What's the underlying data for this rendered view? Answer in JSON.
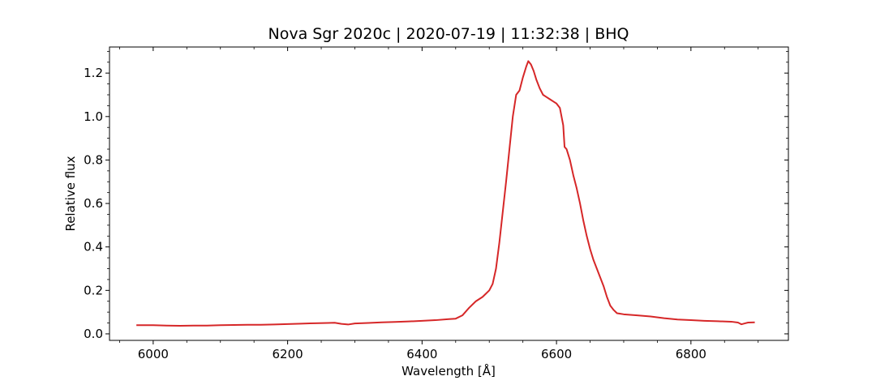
{
  "chart_data": {
    "type": "line",
    "title": "Nova Sgr 2020c | 2020-07-19 | 11:32:38 | BHQ",
    "xlabel": "Wavelength [Å]",
    "ylabel": "Relative flux",
    "xlim": [
      5935,
      6945
    ],
    "ylim": [
      -0.03,
      1.32
    ],
    "x_ticks": [
      6000,
      6200,
      6400,
      6600,
      6800
    ],
    "y_ticks": [
      0.0,
      0.2,
      0.4,
      0.6,
      0.8,
      1.0,
      1.2
    ],
    "x_tick_labels": [
      "6000",
      "6200",
      "6400",
      "6600",
      "6800"
    ],
    "y_tick_labels": [
      "0.0",
      "0.2",
      "0.4",
      "0.6",
      "0.8",
      "1.0",
      "1.2"
    ],
    "x_minor_step": 50,
    "y_minor_step": 0.05,
    "grid": false,
    "legend": "none",
    "series": [
      {
        "color": "#d62728",
        "points": [
          [
            5975,
            0.04
          ],
          [
            6000,
            0.04
          ],
          [
            6020,
            0.038
          ],
          [
            6040,
            0.037
          ],
          [
            6060,
            0.038
          ],
          [
            6080,
            0.038
          ],
          [
            6100,
            0.04
          ],
          [
            6120,
            0.041
          ],
          [
            6140,
            0.042
          ],
          [
            6160,
            0.042
          ],
          [
            6180,
            0.043
          ],
          [
            6200,
            0.045
          ],
          [
            6220,
            0.047
          ],
          [
            6240,
            0.049
          ],
          [
            6260,
            0.05
          ],
          [
            6270,
            0.051
          ],
          [
            6280,
            0.046
          ],
          [
            6290,
            0.043
          ],
          [
            6300,
            0.048
          ],
          [
            6320,
            0.05
          ],
          [
            6340,
            0.053
          ],
          [
            6360,
            0.055
          ],
          [
            6380,
            0.057
          ],
          [
            6400,
            0.06
          ],
          [
            6420,
            0.063
          ],
          [
            6440,
            0.068
          ],
          [
            6450,
            0.07
          ],
          [
            6460,
            0.085
          ],
          [
            6470,
            0.12
          ],
          [
            6480,
            0.15
          ],
          [
            6490,
            0.17
          ],
          [
            6495,
            0.185
          ],
          [
            6500,
            0.2
          ],
          [
            6505,
            0.23
          ],
          [
            6510,
            0.3
          ],
          [
            6515,
            0.42
          ],
          [
            6520,
            0.56
          ],
          [
            6525,
            0.7
          ],
          [
            6530,
            0.85
          ],
          [
            6535,
            1.0
          ],
          [
            6540,
            1.1
          ],
          [
            6545,
            1.12
          ],
          [
            6550,
            1.18
          ],
          [
            6555,
            1.23
          ],
          [
            6558,
            1.255
          ],
          [
            6562,
            1.24
          ],
          [
            6566,
            1.21
          ],
          [
            6570,
            1.17
          ],
          [
            6575,
            1.13
          ],
          [
            6580,
            1.1
          ],
          [
            6585,
            1.09
          ],
          [
            6590,
            1.08
          ],
          [
            6595,
            1.07
          ],
          [
            6600,
            1.06
          ],
          [
            6605,
            1.04
          ],
          [
            6610,
            0.96
          ],
          [
            6612,
            0.86
          ],
          [
            6615,
            0.85
          ],
          [
            6620,
            0.8
          ],
          [
            6625,
            0.73
          ],
          [
            6630,
            0.67
          ],
          [
            6635,
            0.6
          ],
          [
            6640,
            0.52
          ],
          [
            6645,
            0.45
          ],
          [
            6650,
            0.39
          ],
          [
            6655,
            0.34
          ],
          [
            6660,
            0.3
          ],
          [
            6665,
            0.26
          ],
          [
            6670,
            0.22
          ],
          [
            6675,
            0.17
          ],
          [
            6680,
            0.13
          ],
          [
            6685,
            0.11
          ],
          [
            6690,
            0.095
          ],
          [
            6700,
            0.09
          ],
          [
            6720,
            0.085
          ],
          [
            6740,
            0.08
          ],
          [
            6760,
            0.072
          ],
          [
            6780,
            0.066
          ],
          [
            6800,
            0.063
          ],
          [
            6820,
            0.06
          ],
          [
            6840,
            0.058
          ],
          [
            6860,
            0.056
          ],
          [
            6870,
            0.052
          ],
          [
            6875,
            0.044
          ],
          [
            6880,
            0.048
          ],
          [
            6885,
            0.052
          ],
          [
            6895,
            0.053
          ]
        ]
      }
    ]
  }
}
